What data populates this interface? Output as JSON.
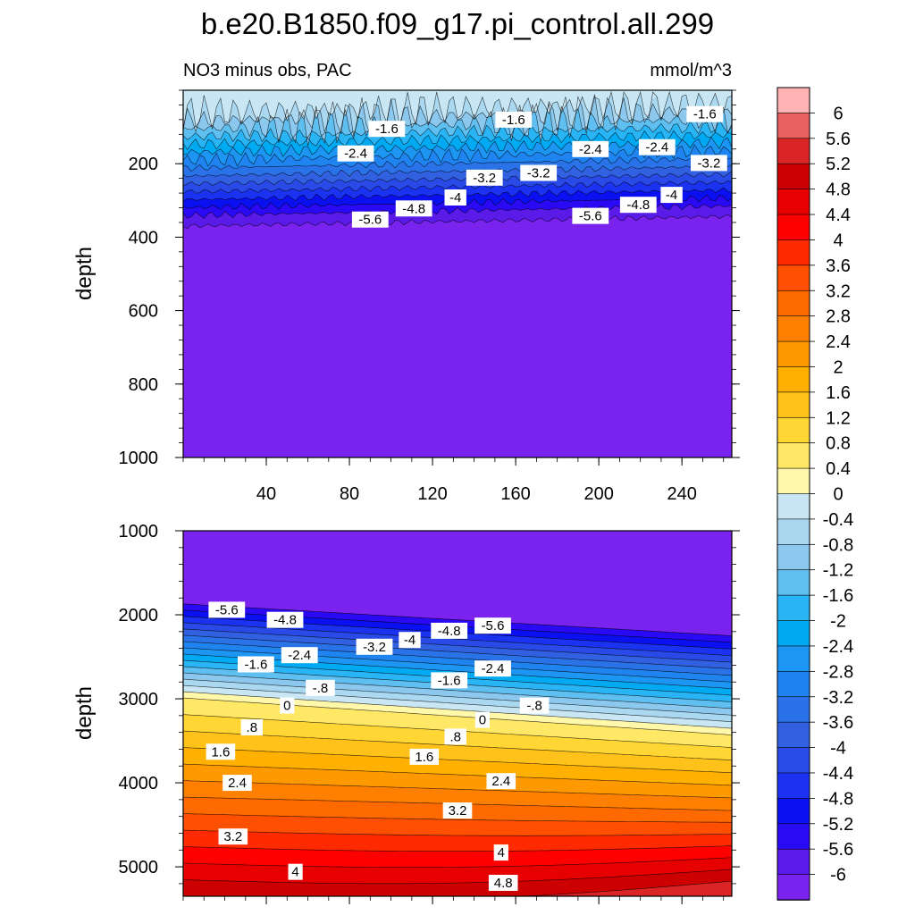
{
  "title": "b.e20.B1850.f09_g17.pi_control.all.299",
  "subtitle_left": "NO3 minus obs, PAC",
  "subtitle_right": "mmol/m^3",
  "chart_data": [
    {
      "type": "heatmap",
      "panel": "upper",
      "ylabel": "depth",
      "xlim": [
        0,
        264
      ],
      "ylim": [
        0,
        1000
      ],
      "y_inverted": true,
      "xticks": [
        40,
        80,
        120,
        160,
        200,
        240
      ],
      "yticks": [
        200,
        400,
        600,
        800,
        1000
      ],
      "contour_labels": [
        {
          "text": "-1.6",
          "x": 98,
          "y": 105
        },
        {
          "text": "-1.6",
          "x": 159,
          "y": 80
        },
        {
          "text": "-1.6",
          "x": 251,
          "y": 65
        },
        {
          "text": "-2.4",
          "x": 83,
          "y": 172
        },
        {
          "text": "-2.4",
          "x": 196,
          "y": 160
        },
        {
          "text": "-2.4",
          "x": 228,
          "y": 155
        },
        {
          "text": "-3.2",
          "x": 253,
          "y": 198
        },
        {
          "text": "-3.2",
          "x": 145,
          "y": 238
        },
        {
          "text": "-3.2",
          "x": 171,
          "y": 225
        },
        {
          "text": "-4",
          "x": 131,
          "y": 292
        },
        {
          "text": "-4",
          "x": 235,
          "y": 285
        },
        {
          "text": "-4.8",
          "x": 111,
          "y": 322
        },
        {
          "text": "-4.8",
          "x": 219,
          "y": 312
        },
        {
          "text": "-5.6",
          "x": 90,
          "y": 352
        },
        {
          "text": "-5.6",
          "x": 196,
          "y": 342
        }
      ]
    },
    {
      "type": "heatmap",
      "panel": "lower",
      "ylabel": "depth",
      "xlim": [
        0,
        264
      ],
      "ylim": [
        1000,
        5350
      ],
      "y_inverted": true,
      "yticks": [
        1000,
        2000,
        3000,
        4000,
        5000
      ],
      "contour_labels": [
        {
          "text": "-5.6",
          "x": 21,
          "y": 1940
        },
        {
          "text": "-5.6",
          "x": 149,
          "y": 2130
        },
        {
          "text": "-4.8",
          "x": 49,
          "y": 2060
        },
        {
          "text": "-4.8",
          "x": 128,
          "y": 2190
        },
        {
          "text": "-4",
          "x": 109,
          "y": 2300
        },
        {
          "text": "-3.2",
          "x": 92,
          "y": 2380
        },
        {
          "text": "-2.4",
          "x": 56,
          "y": 2480
        },
        {
          "text": "-2.4",
          "x": 149,
          "y": 2640
        },
        {
          "text": "-1.6",
          "x": 35,
          "y": 2590
        },
        {
          "text": "-1.6",
          "x": 128,
          "y": 2780
        },
        {
          "text": "-.8",
          "x": 66,
          "y": 2870
        },
        {
          "text": "-.8",
          "x": 169,
          "y": 3080
        },
        {
          "text": "0",
          "x": 50,
          "y": 3080
        },
        {
          "text": "0",
          "x": 144,
          "y": 3250
        },
        {
          "text": ".8",
          "x": 33,
          "y": 3340
        },
        {
          "text": ".8",
          "x": 131,
          "y": 3450
        },
        {
          "text": "1.6",
          "x": 18,
          "y": 3630
        },
        {
          "text": "1.6",
          "x": 116,
          "y": 3690
        },
        {
          "text": "2.4",
          "x": 26,
          "y": 4000
        },
        {
          "text": "2.4",
          "x": 153,
          "y": 3980
        },
        {
          "text": "3.2",
          "x": 24,
          "y": 4640
        },
        {
          "text": "3.2",
          "x": 132,
          "y": 4330
        },
        {
          "text": "4",
          "x": 54,
          "y": 5060
        },
        {
          "text": "4",
          "x": 153,
          "y": 4830
        },
        {
          "text": "4.8",
          "x": 154,
          "y": 5190
        }
      ]
    }
  ],
  "colorbar": {
    "labels": [
      "6",
      "5.6",
      "5.2",
      "4.8",
      "4.4",
      "4",
      "3.6",
      "3.2",
      "2.8",
      "2.4",
      "2",
      "1.6",
      "1.2",
      "0.8",
      "0.4",
      "0",
      "-0.4",
      "-0.8",
      "-1.2",
      "-1.6",
      "-2",
      "-2.4",
      "-2.8",
      "-3.2",
      "-3.6",
      "-4",
      "-4.4",
      "-4.8",
      "-5.2",
      "-5.6",
      "-6"
    ],
    "colors": [
      "#ffb3b3",
      "#e86060",
      "#d92525",
      "#cc0000",
      "#e60000",
      "#ff0000",
      "#ff2a00",
      "#ff4f00",
      "#ff6a00",
      "#ff8000",
      "#ff9900",
      "#ffb000",
      "#ffc21a",
      "#ffd633",
      "#ffe866",
      "#fff7aa",
      "#c8e6f4",
      "#aad8f0",
      "#8cc8ee",
      "#5fbff0",
      "#29b5f5",
      "#00aaf2",
      "#1d95f2",
      "#1f84f0",
      "#2a72e8",
      "#3160e0",
      "#2a4ae8",
      "#1b33f0",
      "#0a10f0",
      "#2a0af5",
      "#5a1ae8",
      "#7a22ee"
    ]
  }
}
